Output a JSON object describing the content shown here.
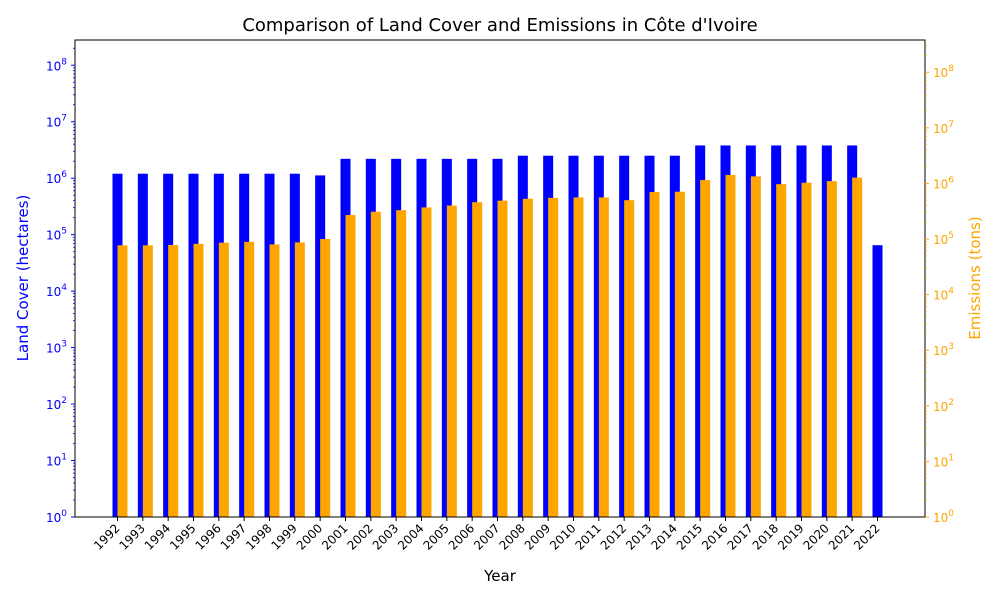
{
  "chart_data": {
    "type": "bar",
    "title": "Comparison of Land Cover and Emissions in Côte d'Ivoire",
    "xlabel": "Year",
    "y_left_label": "Land Cover (hectares)",
    "y_right_label": "Emissions (tons)",
    "y_scale": "log",
    "y_left_range": [
      1,
      280000000
    ],
    "y_right_range": [
      1,
      380000000
    ],
    "grid": false,
    "colors": {
      "land_cover": "#0000ff",
      "emissions": "#ffa500",
      "left_axis": "#0000ff",
      "right_axis": "#ffa500"
    },
    "categories": [
      "1992",
      "1993",
      "1994",
      "1995",
      "1996",
      "1997",
      "1998",
      "1999",
      "2000",
      "2001",
      "2002",
      "2003",
      "2004",
      "2005",
      "2006",
      "2007",
      "2008",
      "2009",
      "2010",
      "2011",
      "2012",
      "2013",
      "2014",
      "2015",
      "2016",
      "2017",
      "2018",
      "2019",
      "2020",
      "2021",
      "2022"
    ],
    "series": [
      {
        "name": "",
        "axis": "left",
        "values": [
          1200000,
          1200000,
          1200000,
          1200000,
          1200000,
          1200000,
          1200000,
          1200000,
          1120000,
          2200000,
          2200000,
          2200000,
          2200000,
          2200000,
          2200000,
          2200000,
          2500000,
          2500000,
          2500000,
          2500000,
          2500000,
          2500000,
          2500000,
          3800000,
          3800000,
          3800000,
          3800000,
          3800000,
          3800000,
          3800000,
          65000
        ]
      },
      {
        "name": "",
        "axis": "right",
        "values": [
          77000,
          77000,
          78000,
          82000,
          86000,
          89000,
          80000,
          87000,
          100000,
          270000,
          310000,
          330000,
          370000,
          400000,
          460000,
          490000,
          530000,
          550000,
          560000,
          560000,
          500000,
          700000,
          710000,
          1150000,
          1420000,
          1340000,
          970000,
          1030000,
          1100000,
          1270000,
          null
        ]
      }
    ],
    "y_left_ticks": [
      {
        "base": "10",
        "exp": "0",
        "value": 1
      },
      {
        "base": "10",
        "exp": "1",
        "value": 10
      },
      {
        "base": "10",
        "exp": "2",
        "value": 100
      },
      {
        "base": "10",
        "exp": "3",
        "value": 1000
      },
      {
        "base": "10",
        "exp": "4",
        "value": 10000
      },
      {
        "base": "10",
        "exp": "5",
        "value": 100000
      },
      {
        "base": "10",
        "exp": "6",
        "value": 1000000
      },
      {
        "base": "10",
        "exp": "7",
        "value": 10000000
      },
      {
        "base": "10",
        "exp": "8",
        "value": 100000000
      }
    ],
    "y_right_ticks": [
      {
        "base": "10",
        "exp": "0",
        "value": 1
      },
      {
        "base": "10",
        "exp": "1",
        "value": 10
      },
      {
        "base": "10",
        "exp": "2",
        "value": 100
      },
      {
        "base": "10",
        "exp": "3",
        "value": 1000
      },
      {
        "base": "10",
        "exp": "4",
        "value": 10000
      },
      {
        "base": "10",
        "exp": "5",
        "value": 100000
      },
      {
        "base": "10",
        "exp": "6",
        "value": 1000000
      },
      {
        "base": "10",
        "exp": "7",
        "value": 10000000
      },
      {
        "base": "10",
        "exp": "8",
        "value": 100000000
      }
    ]
  }
}
